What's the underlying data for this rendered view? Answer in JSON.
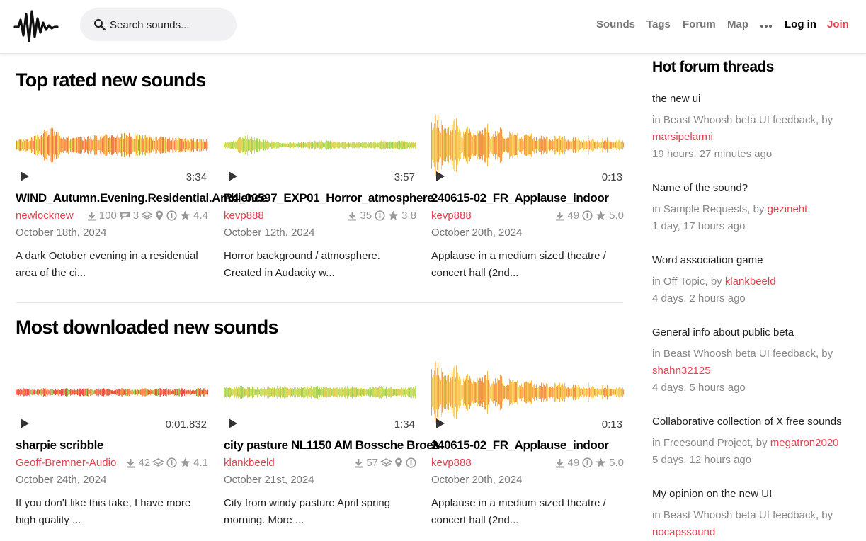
{
  "header": {
    "search_placeholder": "Search sounds...",
    "nav": [
      "Sounds",
      "Tags",
      "Forum",
      "Map"
    ],
    "login": "Log in",
    "join": "Join"
  },
  "sections": [
    {
      "title": "Top rated new sounds",
      "sounds": [
        {
          "duration": "3:34",
          "title": "WIND_Autumn.Evening.Residential.Ambience",
          "author": "newlocknew",
          "downloads": "100",
          "comments": "3",
          "rating": "4.4",
          "date": "October 18th, 2024",
          "desc": "A dark October evening in a residential area of the ci..."
        },
        {
          "duration": "3:57",
          "title": "R4_00597_EXP01_Horror_atmosphere",
          "author": "kevp888",
          "downloads": "35",
          "rating": "3.8",
          "date": "October 12th, 2024",
          "desc": "Horror background / atmosphere. Created in Audacity w..."
        },
        {
          "duration": "0:13",
          "title": "240615-02_FR_Applause_indoor",
          "author": "kevp888",
          "downloads": "49",
          "rating": "5.0",
          "date": "October 20th, 2024",
          "desc": "Applause in a medium sized theatre / concert hall (2nd..."
        }
      ]
    },
    {
      "title": "Most downloaded new sounds",
      "sounds": [
        {
          "duration": "0:01.832",
          "title": "sharpie scribble",
          "author": "Geoff-Bremner-Audio",
          "downloads": "42",
          "rating": "4.1",
          "date": "October 24th, 2024",
          "desc": "If you don't like this take, I have more high quality ..."
        },
        {
          "duration": "1:34",
          "title": "city pasture NL1150 AM Bossche Broek",
          "author": "klankbeeld",
          "downloads": "57",
          "date": "October 21st, 2024",
          "desc": "City from windy pasture April spring morning. More ..."
        },
        {
          "duration": "0:13",
          "title": "240615-02_FR_Applause_indoor",
          "author": "kevp888",
          "downloads": "49",
          "rating": "5.0",
          "date": "October 20th, 2024",
          "desc": "Applause in a medium sized theatre / concert hall (2nd..."
        }
      ]
    }
  ],
  "forum": {
    "title": "Hot forum threads",
    "threads": [
      {
        "title": "the new ui",
        "in_prefix": "in Beast Whoosh beta UI feedback, by",
        "author": "marsipelarmi",
        "ago": "19 hours, 27 minutes ago"
      },
      {
        "title": "Name of the sound?",
        "in_prefix": "in Sample Requests, by",
        "author": "gezineht",
        "ago": "1 day, 17 hours ago"
      },
      {
        "title": "Word association game",
        "in_prefix": "in Off Topic, by",
        "author": "klankbeeld",
        "ago": "4 days, 2 hours ago"
      },
      {
        "title": "General info about public beta",
        "in_prefix": "in Beast Whoosh beta UI feedback, by",
        "author": "shahn32125",
        "ago": "4 days, 5 hours ago"
      },
      {
        "title": "Collaborative collection of X free sounds",
        "in_prefix": "in Freesound Project, by",
        "author": "megatron2020",
        "ago": "5 days, 12 hours ago"
      },
      {
        "title": "My opinion on the new UI",
        "in_prefix": "in Beast Whoosh beta UI feedback, by",
        "author": "nocapssound",
        "ago": ""
      }
    ]
  },
  "colors": {
    "accent": "#e8404e"
  }
}
